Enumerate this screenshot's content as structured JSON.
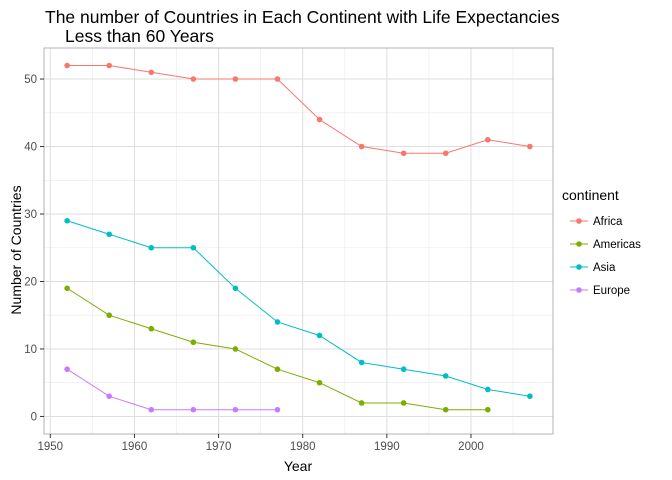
{
  "chart_data": {
    "type": "line",
    "title_line1": "The number of Countries in Each Continent with Life Expectancies",
    "title_line2": "Less than 60 Years",
    "xlabel": "Year",
    "ylabel": "Number of Countries",
    "xlim": [
      1949.25,
      2009.75
    ],
    "ylim": [
      -2.6,
      54.6
    ],
    "xticks": [
      1950,
      1960,
      1970,
      1980,
      1990,
      2000
    ],
    "yticks": [
      0,
      10,
      20,
      30,
      40,
      50
    ],
    "grid": true,
    "legend": {
      "title": "continent",
      "placement": "right"
    },
    "series": [
      {
        "name": "Africa",
        "color": "#F8766D",
        "x": [
          1952,
          1957,
          1962,
          1967,
          1972,
          1977,
          1982,
          1987,
          1992,
          1997,
          2002,
          2007
        ],
        "y": [
          52,
          52,
          51,
          50,
          50,
          50,
          44,
          40,
          39,
          39,
          41,
          40
        ]
      },
      {
        "name": "Americas",
        "color": "#7CAE00",
        "x": [
          1952,
          1957,
          1962,
          1967,
          1972,
          1977,
          1982,
          1987,
          1992,
          1997,
          2002
        ],
        "y": [
          19,
          15,
          13,
          11,
          10,
          7,
          5,
          2,
          2,
          1,
          1
        ]
      },
      {
        "name": "Asia",
        "color": "#00BFC4",
        "x": [
          1952,
          1957,
          1962,
          1967,
          1972,
          1977,
          1982,
          1987,
          1992,
          1997,
          2002,
          2007
        ],
        "y": [
          29,
          27,
          25,
          25,
          19,
          14,
          12,
          8,
          7,
          6,
          4,
          3
        ]
      },
      {
        "name": "Europe",
        "color": "#C77CFF",
        "x": [
          1952,
          1957,
          1962,
          1967,
          1972,
          1977
        ],
        "y": [
          7,
          3,
          1,
          1,
          1,
          1
        ]
      }
    ]
  }
}
